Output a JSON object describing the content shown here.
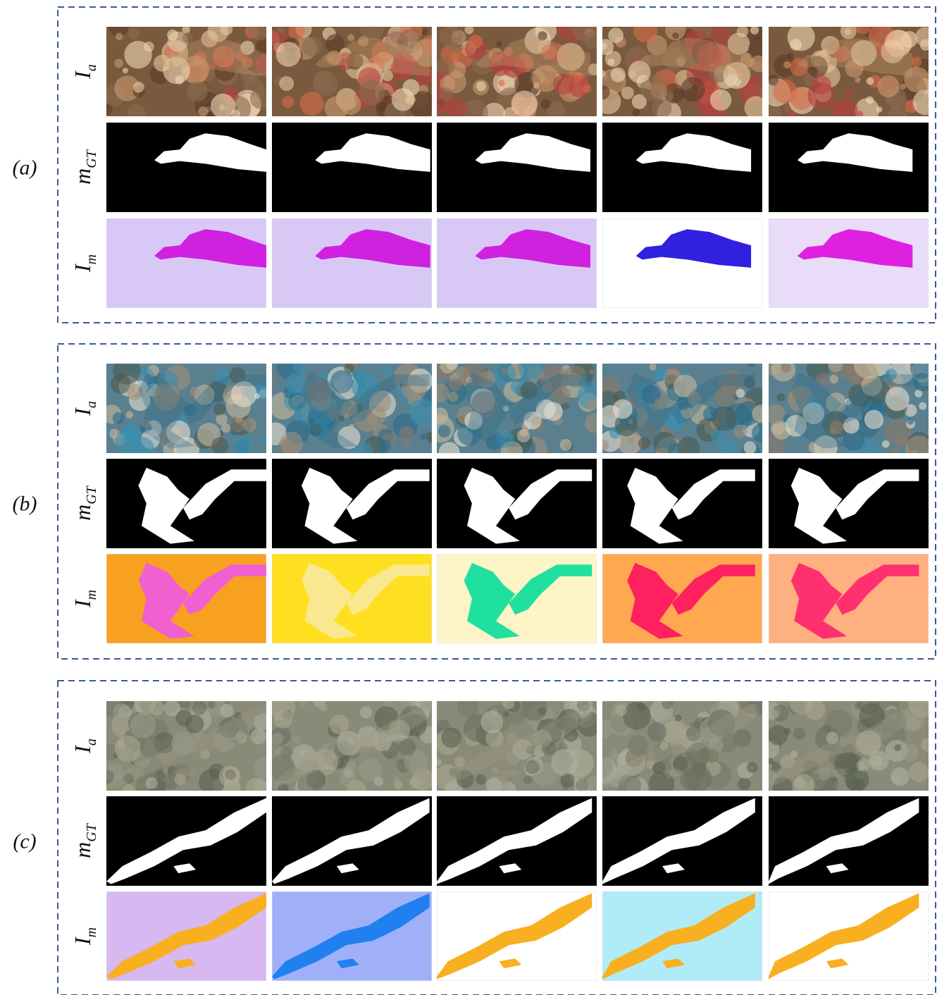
{
  "panels": [
    {
      "label": "(a)",
      "rows": [
        {
          "symbol": "I",
          "subscript": "a"
        },
        {
          "symbol": "m",
          "subscript": "GT"
        },
        {
          "symbol": "I",
          "subscript": "m"
        }
      ]
    },
    {
      "label": "(b)",
      "rows": [
        {
          "symbol": "I",
          "subscript": "a"
        },
        {
          "symbol": "m",
          "subscript": "GT"
        },
        {
          "symbol": "I",
          "subscript": "m"
        }
      ]
    },
    {
      "label": "(c)",
      "rows": [
        {
          "symbol": "I",
          "subscript": "a"
        },
        {
          "symbol": "m",
          "subscript": "GT"
        },
        {
          "symbol": "I",
          "subscript": "m"
        }
      ]
    }
  ]
}
